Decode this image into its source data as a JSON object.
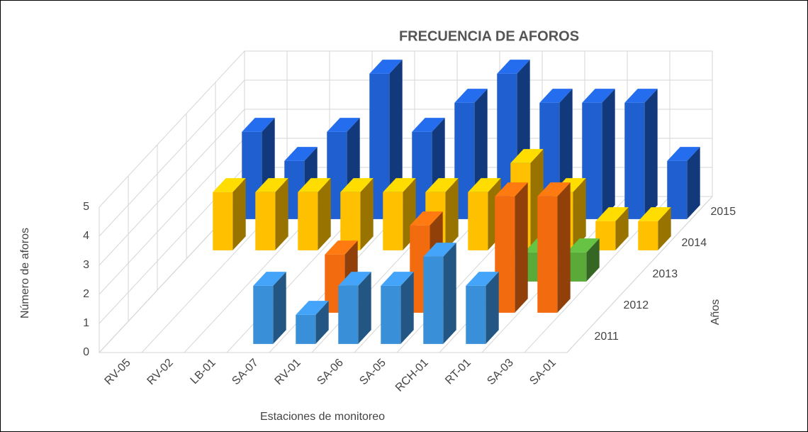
{
  "chart_data": {
    "type": "bar3d",
    "title": "FRECUENCIA DE AFOROS",
    "x_label": "Estaciones de monitoreo",
    "y_label": "Número de aforos",
    "z_label": "Años",
    "categories": [
      "RV-05",
      "RV-02",
      "LB-01",
      "SA-07",
      "RV-01",
      "SA-06",
      "SA-05",
      "RCH-01",
      "RT-01",
      "SA-03",
      "SA-01"
    ],
    "series": [
      {
        "name": "2011",
        "color": "#3a8fd9",
        "values": [
          0,
          0,
          0,
          2,
          1,
          2,
          2,
          3,
          2,
          0,
          0
        ]
      },
      {
        "name": "2012",
        "color": "#f26b0f",
        "values": [
          0,
          0,
          0,
          0,
          2,
          0,
          3,
          0,
          4,
          4,
          0
        ]
      },
      {
        "name": "2013",
        "color": "#5aaa3a",
        "values": [
          0,
          0,
          0,
          0,
          0,
          0,
          0,
          0,
          1,
          1,
          0
        ]
      },
      {
        "name": "2014",
        "color": "#ffc000",
        "values": [
          2,
          2,
          2,
          2,
          2,
          2,
          2,
          3,
          2,
          1,
          1
        ]
      },
      {
        "name": "2015",
        "color": "#1f5fd0",
        "values": [
          3,
          2,
          3,
          5,
          3,
          4,
          5,
          4,
          4,
          4,
          2
        ]
      }
    ],
    "ylim": [
      0,
      5
    ],
    "yticks": [
      0,
      1,
      2,
      3,
      4,
      5
    ],
    "grid": true
  }
}
